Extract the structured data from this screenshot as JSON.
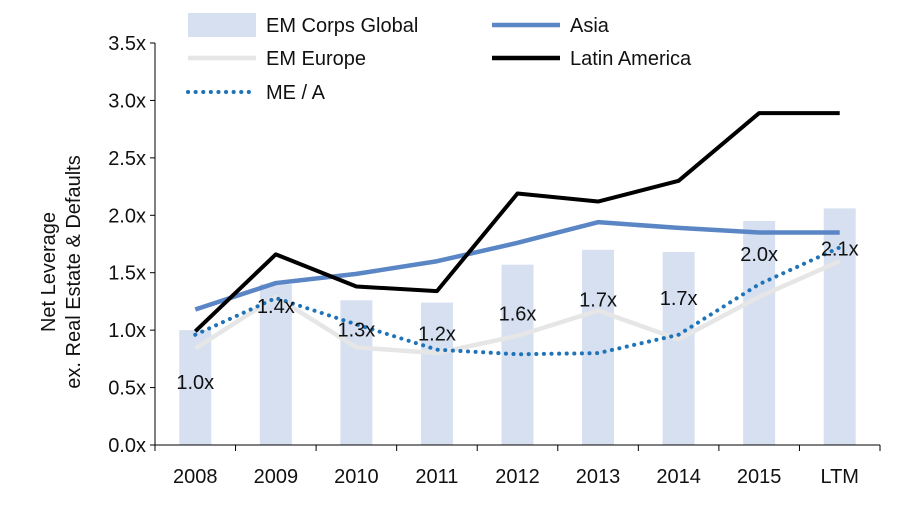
{
  "chart_data": {
    "type": "bar",
    "title": "",
    "xlabel": "",
    "ylabel": "Net Leverage\nex. Real Estate & Defaults",
    "ylim": [
      0,
      3.5
    ],
    "yticks": [
      "0.0x",
      "0.5x",
      "1.0x",
      "1.5x",
      "2.0x",
      "2.5x",
      "3.0x",
      "3.5x"
    ],
    "categories": [
      "2008",
      "2009",
      "2010",
      "2011",
      "2012",
      "2013",
      "2014",
      "2015",
      "LTM"
    ],
    "grid": false,
    "legend_position": "top",
    "series": [
      {
        "name": "EM Corps Global",
        "kind": "bar",
        "color": "#d6e0f1",
        "values": [
          1.0,
          1.4,
          1.26,
          1.24,
          1.57,
          1.7,
          1.68,
          1.95,
          2.06
        ],
        "labels": [
          "1.0x",
          "1.4x",
          "1.3x",
          "1.2x",
          "1.6x",
          "1.7x",
          "1.7x",
          "2.0x",
          "2.1x"
        ]
      },
      {
        "name": "Asia",
        "kind": "line",
        "color": "#5b86c5",
        "values": [
          1.18,
          1.41,
          1.49,
          1.6,
          1.76,
          1.94,
          1.89,
          1.85,
          1.85
        ]
      },
      {
        "name": "EM Europe",
        "kind": "line",
        "color": "#e6e6e6",
        "values": [
          0.84,
          1.29,
          0.85,
          0.8,
          0.95,
          1.17,
          0.92,
          1.29,
          1.6
        ]
      },
      {
        "name": "Latin America",
        "kind": "line",
        "color": "#000000",
        "values": [
          0.99,
          1.66,
          1.38,
          1.34,
          2.19,
          2.12,
          2.3,
          2.89,
          2.89
        ]
      },
      {
        "name": "ME / A",
        "kind": "line",
        "style": "dotted",
        "color": "#1f73b8",
        "values": [
          0.96,
          1.28,
          1.05,
          0.83,
          0.79,
          0.8,
          0.96,
          1.4,
          1.72
        ]
      }
    ]
  }
}
